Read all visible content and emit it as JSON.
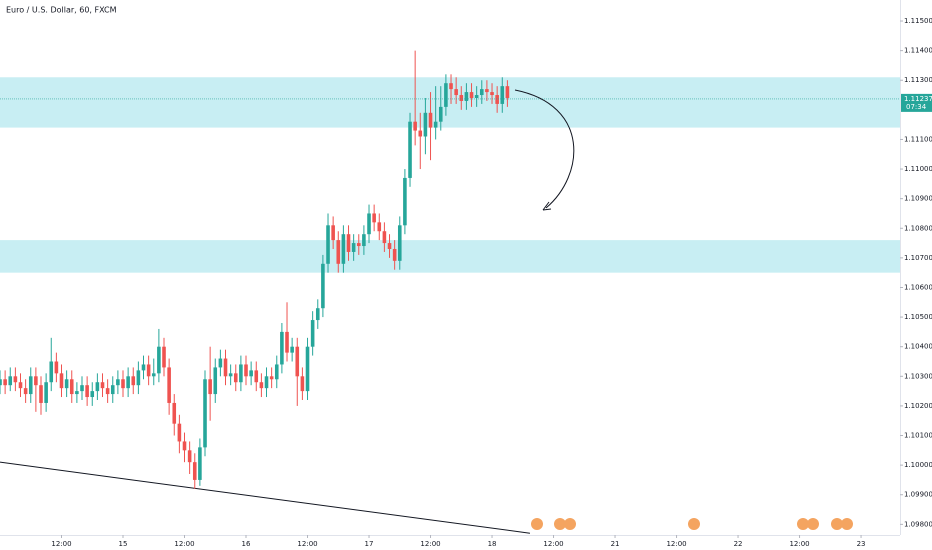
{
  "chart_data": {
    "type": "candlestick",
    "title": "Euro / U.S. Dollar, 60, FXCM",
    "up_color": "#26a69a",
    "down_color": "#ef5350",
    "zone_color": "#c8eef3",
    "grid": false,
    "x": [
      0,
      1,
      2,
      3,
      4,
      5,
      6,
      7,
      8,
      9,
      10,
      11,
      12,
      13,
      14,
      15,
      16,
      17,
      18,
      19,
      20,
      21,
      22,
      23,
      24,
      25,
      26,
      27,
      28,
      29,
      30,
      31,
      32,
      33,
      34,
      35,
      36,
      37,
      38,
      39,
      40,
      41,
      42,
      43,
      44,
      45,
      46,
      47,
      48,
      49,
      50,
      51,
      52,
      53,
      54,
      55,
      56,
      57,
      58,
      59,
      60,
      61,
      62,
      63,
      64,
      65,
      66,
      67,
      68,
      69,
      70,
      71,
      72,
      73,
      74,
      75,
      76,
      77,
      78,
      79,
      80,
      81,
      82,
      83,
      84,
      85,
      86,
      87,
      88,
      89,
      90,
      91,
      92,
      93,
      94,
      95,
      96,
      97,
      98,
      99
    ],
    "open": [
      1.1027,
      1.1029,
      1.1027,
      1.103,
      1.1028,
      1.1026,
      1.1024,
      1.103,
      1.1027,
      1.1021,
      1.1028,
      1.1035,
      1.1031,
      1.1026,
      1.1029,
      1.1024,
      1.1025,
      1.1027,
      1.1023,
      1.1025,
      1.1028,
      1.1026,
      1.1024,
      1.1027,
      1.1029,
      1.1026,
      1.103,
      1.1027,
      1.1032,
      1.1034,
      1.103,
      1.1031,
      1.104,
      1.1033,
      1.1021,
      1.1014,
      1.1008,
      1.1005,
      1.1001,
      1.0995,
      1.1006,
      1.1029,
      1.1024,
      1.1033,
      1.1036,
      1.103,
      1.1031,
      1.1028,
      1.1034,
      1.103,
      1.1032,
      1.1028,
      1.1026,
      1.103,
      1.1029,
      1.1034,
      1.1045,
      1.1038,
      1.104,
      1.103,
      1.1025,
      1.104,
      1.1049,
      1.1053,
      1.1068,
      1.1081,
      1.1076,
      1.1068,
      1.1078,
      1.1072,
      1.1075,
      1.1074,
      1.1078,
      1.1085,
      1.1082,
      1.1079,
      1.1075,
      1.1073,
      1.1069,
      1.1081,
      1.1097,
      1.1116,
      1.1113,
      1.1111,
      1.1119,
      1.1114,
      1.1116,
      1.1121,
      1.1129,
      1.1127,
      1.1125,
      1.1123,
      1.1126,
      1.1124,
      1.1125,
      1.1127,
      1.1126,
      1.1125,
      1.1122,
      1.1128
    ],
    "high": [
      1.1032,
      1.1032,
      1.1033,
      1.1033,
      1.1031,
      1.1029,
      1.1033,
      1.1033,
      1.103,
      1.1031,
      1.1043,
      1.1038,
      1.1034,
      1.1032,
      1.1032,
      1.1028,
      1.103,
      1.103,
      1.1028,
      1.1031,
      1.1031,
      1.1029,
      1.103,
      1.1032,
      1.1032,
      1.1033,
      1.1033,
      1.1035,
      1.1037,
      1.1037,
      1.1036,
      1.1046,
      1.1043,
      1.1036,
      1.1024,
      1.1017,
      1.1011,
      1.1008,
      1.1004,
      1.1009,
      1.1032,
      1.104,
      1.1036,
      1.1039,
      1.1039,
      1.1034,
      1.1034,
      1.1037,
      1.1037,
      1.1035,
      1.1035,
      1.1031,
      1.1033,
      1.1033,
      1.1037,
      1.1048,
      1.1055,
      1.1043,
      1.1043,
      1.1033,
      1.1043,
      1.1052,
      1.1056,
      1.1071,
      1.1085,
      1.1084,
      1.1079,
      1.1081,
      1.1081,
      1.1078,
      1.1078,
      1.1081,
      1.1088,
      1.1088,
      1.1085,
      1.1082,
      1.1078,
      1.1076,
      1.1084,
      1.11,
      1.1119,
      1.114,
      1.1119,
      1.1124,
      1.1126,
      1.1128,
      1.1128,
      1.1132,
      1.1132,
      1.1131,
      1.1128,
      1.1129,
      1.1129,
      1.1128,
      1.113,
      1.113,
      1.1129,
      1.1128,
      1.1131,
      1.113
    ],
    "low": [
      1.1024,
      1.1024,
      1.1025,
      1.1025,
      1.1023,
      1.1021,
      1.1021,
      1.1018,
      1.1017,
      1.1018,
      1.1025,
      1.1028,
      1.1023,
      1.1023,
      1.1021,
      1.1021,
      1.1022,
      1.102,
      1.102,
      1.1022,
      1.1023,
      1.1021,
      1.1021,
      1.1024,
      1.1023,
      1.1023,
      1.1024,
      1.1024,
      1.1029,
      1.1027,
      1.1027,
      1.1028,
      1.103,
      1.1017,
      1.101,
      1.1004,
      1.1001,
      1.0997,
      1.0992,
      1.0993,
      1.1003,
      1.1015,
      1.1021,
      1.103,
      1.1027,
      1.1027,
      1.1025,
      1.1025,
      1.1027,
      1.1027,
      1.1025,
      1.1023,
      1.1023,
      1.1026,
      1.1026,
      1.1031,
      1.1035,
      1.1035,
      1.102,
      1.1022,
      1.1022,
      1.1037,
      1.1046,
      1.105,
      1.1065,
      1.1073,
      1.1065,
      1.1065,
      1.1069,
      1.1069,
      1.1071,
      1.1071,
      1.1075,
      1.1079,
      1.1076,
      1.1072,
      1.107,
      1.1066,
      1.1066,
      1.1078,
      1.1094,
      1.1108,
      1.11,
      1.1105,
      1.1103,
      1.111,
      1.1113,
      1.1118,
      1.1122,
      1.1122,
      1.112,
      1.112,
      1.1121,
      1.1121,
      1.1122,
      1.1123,
      1.1122,
      1.1119,
      1.1119,
      1.1121
    ],
    "close": [
      1.1029,
      1.1027,
      1.103,
      1.1028,
      1.1026,
      1.1024,
      1.103,
      1.1027,
      1.1021,
      1.1028,
      1.1035,
      1.1031,
      1.1026,
      1.1029,
      1.1024,
      1.1025,
      1.1027,
      1.1023,
      1.1025,
      1.1028,
      1.1026,
      1.1024,
      1.1027,
      1.1029,
      1.1026,
      1.103,
      1.1027,
      1.1032,
      1.1034,
      1.103,
      1.1031,
      1.104,
      1.1033,
      1.1021,
      1.1014,
      1.1008,
      1.1005,
      1.1001,
      1.0995,
      1.1006,
      1.1029,
      1.1024,
      1.1033,
      1.1036,
      1.103,
      1.1031,
      1.1028,
      1.1034,
      1.103,
      1.1032,
      1.1028,
      1.1026,
      1.103,
      1.1029,
      1.1034,
      1.1045,
      1.1038,
      1.104,
      1.103,
      1.1025,
      1.104,
      1.1049,
      1.1053,
      1.1068,
      1.1081,
      1.1076,
      1.1068,
      1.1078,
      1.1072,
      1.1075,
      1.1074,
      1.1078,
      1.1085,
      1.1082,
      1.1079,
      1.1075,
      1.1073,
      1.1069,
      1.1081,
      1.1097,
      1.1116,
      1.1113,
      1.1111,
      1.1119,
      1.1114,
      1.1116,
      1.1121,
      1.1129,
      1.1127,
      1.1125,
      1.1123,
      1.1126,
      1.1124,
      1.1125,
      1.1127,
      1.1126,
      1.1125,
      1.1122,
      1.1128,
      1.1124
    ],
    "xlim": [
      0,
      175.6
    ],
    "xticks": [
      {
        "value": 12,
        "label": "12:00"
      },
      {
        "value": 24,
        "label": "15"
      },
      {
        "value": 36,
        "label": "12:00"
      },
      {
        "value": 48,
        "label": "16"
      },
      {
        "value": 60,
        "label": "12:00"
      },
      {
        "value": 72,
        "label": "17"
      },
      {
        "value": 84,
        "label": "12:00"
      },
      {
        "value": 96,
        "label": "18"
      },
      {
        "value": 108,
        "label": "12:00"
      },
      {
        "value": 120,
        "label": "21"
      },
      {
        "value": 132,
        "label": "12:00"
      },
      {
        "value": 144,
        "label": "22"
      },
      {
        "value": 156,
        "label": "12:00"
      },
      {
        "value": 168,
        "label": "23"
      }
    ],
    "ylim": [
      1.09764,
      1.11571
    ],
    "yticks": [
      {
        "value": 1.115,
        "label": "1.11500"
      },
      {
        "value": 1.114,
        "label": "1.11400"
      },
      {
        "value": 1.113,
        "label": "1.11300"
      },
      {
        "value": 1.111,
        "label": "1.11100"
      },
      {
        "value": 1.11,
        "label": "1.11000"
      },
      {
        "value": 1.109,
        "label": "1.10900"
      },
      {
        "value": 1.108,
        "label": "1.10800"
      },
      {
        "value": 1.107,
        "label": "1.10700"
      },
      {
        "value": 1.106,
        "label": "1.10600"
      },
      {
        "value": 1.105,
        "label": "1.10500"
      },
      {
        "value": 1.104,
        "label": "1.10400"
      },
      {
        "value": 1.103,
        "label": "1.10300"
      },
      {
        "value": 1.102,
        "label": "1.10200"
      },
      {
        "value": 1.101,
        "label": "1.10100"
      },
      {
        "value": 1.1,
        "label": "1.10000"
      },
      {
        "value": 1.099,
        "label": "1.09900"
      },
      {
        "value": 1.098,
        "label": "1.09800"
      }
    ],
    "last_price": {
      "value": 1.11237,
      "label": "1.11237"
    },
    "countdown": "07:34",
    "zones": [
      {
        "top": 1.1131,
        "bottom": 1.1114
      },
      {
        "top": 1.1076,
        "bottom": 1.1065
      }
    ],
    "trendline": {
      "x": [
        0,
        103.4
      ],
      "y": [
        1.1001,
        1.0977
      ]
    }
  }
}
